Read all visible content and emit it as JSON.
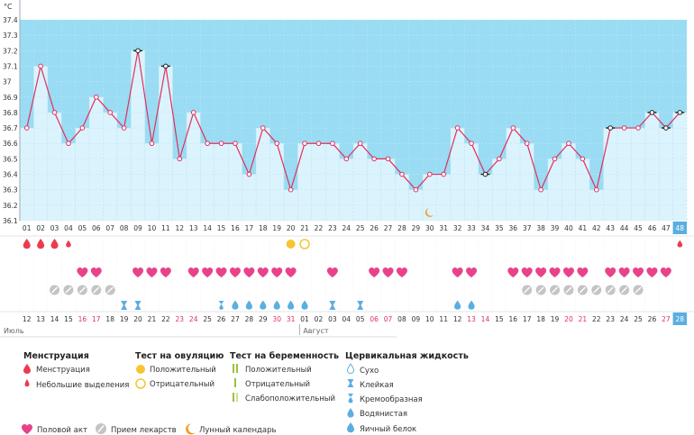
{
  "chart_data": {
    "type": "line",
    "unit_label": "°C",
    "ylim": [
      36.1,
      37.4
    ],
    "y_ticks": [
      "36.1",
      "36.2",
      "36.3",
      "36.4",
      "36.5",
      "36.6",
      "36.7",
      "36.8",
      "36.9",
      "37",
      "37.1",
      "37.2",
      "37.3",
      "37.4"
    ],
    "grid": true,
    "highlight_color": "#99dcf3",
    "line_color": "#e0305f",
    "bar_color": "#dbf3fc",
    "cycle_days": [
      "01",
      "02",
      "03",
      "04",
      "05",
      "06",
      "07",
      "08",
      "09",
      "10",
      "11",
      "12",
      "13",
      "14",
      "15",
      "16",
      "17",
      "18",
      "19",
      "20",
      "21",
      "22",
      "23",
      "24",
      "25",
      "26",
      "27",
      "28",
      "29",
      "30",
      "31",
      "32",
      "33",
      "34",
      "35",
      "36",
      "37",
      "38",
      "39",
      "40",
      "41",
      "42",
      "43",
      "44",
      "45",
      "46",
      "47",
      "48"
    ],
    "series": [
      {
        "values": [
          36.7,
          37.1,
          36.8,
          36.6,
          36.7,
          36.9,
          36.8,
          36.7,
          37.2,
          36.6,
          37.1,
          36.5,
          36.8,
          36.6,
          36.6,
          36.6,
          36.4,
          36.7,
          36.6,
          36.3,
          36.6,
          36.6,
          36.6,
          36.5,
          36.6,
          36.5,
          36.5,
          36.4,
          36.3,
          36.4,
          36.4,
          36.7,
          36.6,
          36.4,
          36.5,
          36.7,
          36.6,
          36.3,
          36.5,
          36.6,
          36.5,
          36.3,
          36.7,
          36.7,
          36.7,
          36.8,
          36.7,
          36.8
        ]
      }
    ],
    "special_markers": [
      {
        "day": "09",
        "style": "black-ring"
      },
      {
        "day": "11",
        "style": "black-ring"
      },
      {
        "day": "34",
        "style": "black-ring"
      },
      {
        "day": "43",
        "style": "black-ring"
      },
      {
        "day": "46",
        "style": "black-ring"
      },
      {
        "day": "47",
        "style": "black-ring"
      },
      {
        "day": "48",
        "style": "black-ring"
      }
    ],
    "current_day": "48",
    "lunar_day": "30",
    "calendar_dates": [
      {
        "d": "12",
        "red": false
      },
      {
        "d": "13",
        "red": false
      },
      {
        "d": "14",
        "red": false
      },
      {
        "d": "15",
        "red": false
      },
      {
        "d": "16",
        "red": true
      },
      {
        "d": "17",
        "red": true
      },
      {
        "d": "18",
        "red": false
      },
      {
        "d": "19",
        "red": false
      },
      {
        "d": "20",
        "red": false
      },
      {
        "d": "21",
        "red": false
      },
      {
        "d": "22",
        "red": false
      },
      {
        "d": "23",
        "red": true
      },
      {
        "d": "24",
        "red": true
      },
      {
        "d": "25",
        "red": false
      },
      {
        "d": "26",
        "red": false
      },
      {
        "d": "27",
        "red": false
      },
      {
        "d": "28",
        "red": false
      },
      {
        "d": "29",
        "red": false
      },
      {
        "d": "30",
        "red": true
      },
      {
        "d": "31",
        "red": true
      },
      {
        "d": "01",
        "red": false
      },
      {
        "d": "02",
        "red": false
      },
      {
        "d": "03",
        "red": false
      },
      {
        "d": "04",
        "red": false
      },
      {
        "d": "05",
        "red": false
      },
      {
        "d": "06",
        "red": true
      },
      {
        "d": "07",
        "red": true
      },
      {
        "d": "08",
        "red": false
      },
      {
        "d": "09",
        "red": false
      },
      {
        "d": "10",
        "red": false
      },
      {
        "d": "11",
        "red": false
      },
      {
        "d": "12",
        "red": false
      },
      {
        "d": "13",
        "red": true
      },
      {
        "d": "14",
        "red": true
      },
      {
        "d": "15",
        "red": false
      },
      {
        "d": "16",
        "red": false
      },
      {
        "d": "17",
        "red": false
      },
      {
        "d": "18",
        "red": false
      },
      {
        "d": "19",
        "red": false
      },
      {
        "d": "20",
        "red": true
      },
      {
        "d": "21",
        "red": true
      },
      {
        "d": "22",
        "red": false
      },
      {
        "d": "23",
        "red": false
      },
      {
        "d": "24",
        "red": false
      },
      {
        "d": "25",
        "red": false
      },
      {
        "d": "26",
        "red": false
      },
      {
        "d": "27",
        "red": true
      },
      {
        "d": "28",
        "red": false
      }
    ],
    "month_labels": [
      {
        "label": "Июль",
        "start_index": 0
      },
      {
        "label": "Август",
        "start_index": 20
      }
    ],
    "menstruation_days": [
      1,
      2,
      3
    ],
    "spotting_days": [
      4,
      48
    ],
    "ovulation_positive_days": [
      20
    ],
    "ovulation_negative_days": [
      21
    ],
    "intercourse_days": [
      5,
      6,
      9,
      10,
      11,
      13,
      14,
      15,
      16,
      17,
      18,
      19,
      20,
      23,
      26,
      27,
      28,
      32,
      33,
      36,
      37,
      38,
      39,
      40,
      41,
      43,
      44,
      45,
      46,
      47
    ],
    "medication_days": [
      3,
      4,
      5,
      6,
      7,
      37,
      38,
      39,
      40,
      41,
      42,
      43,
      44,
      45
    ],
    "sticky_days": [
      8,
      9,
      23,
      25
    ],
    "watery_days": [
      16,
      17,
      18,
      19,
      20,
      21,
      32,
      33
    ],
    "creamy_days": [
      15
    ]
  },
  "legend": {
    "menstruation": {
      "title": "Менструация",
      "items": [
        "Менструация",
        "Небольшие выделения"
      ]
    },
    "ovulation": {
      "title": "Тест на овуляцию",
      "items": [
        "Положительный",
        "Отрицательный"
      ]
    },
    "pregnancy": {
      "title": "Тест на беременность",
      "items": [
        "Положительный",
        "Отрицательный",
        "Слабоположительный"
      ]
    },
    "cervical": {
      "title": "Цервикальная жидкость",
      "items": [
        "Сухо",
        "Клейкая",
        "Кремообразная",
        "Водянистая",
        "Яичный белок"
      ]
    },
    "bottom": {
      "intercourse": "Половой акт",
      "medication": "Прием лекарств",
      "lunar": "Лунный календарь"
    }
  }
}
